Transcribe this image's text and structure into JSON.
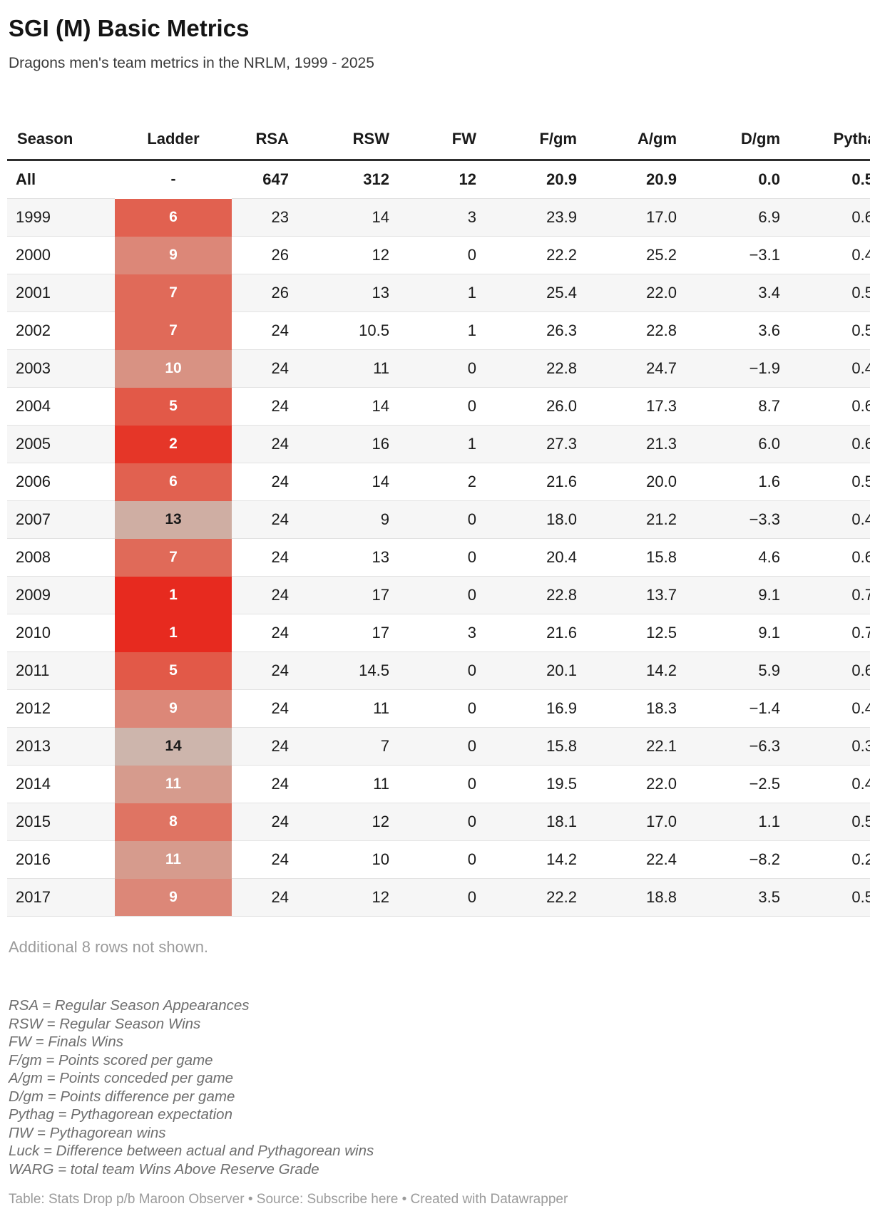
{
  "header": {
    "title": "SGI (M) Basic Metrics",
    "subtitle": "Dragons men's team metrics in the NRLM, 1999 - 2025"
  },
  "table": {
    "columns": [
      "Season",
      "Ladder",
      "RSA",
      "RSW",
      "FW",
      "F/gm",
      "A/gm",
      "D/gm",
      "Pythag"
    ],
    "ladder_colors": {
      "1": "#e72a1f",
      "2": "#e53628",
      "5": "#e25948",
      "6": "#e16150",
      "7": "#e06a59",
      "8": "#df7463",
      "9": "#dc8778",
      "10": "#d89283",
      "11": "#d69b8d",
      "13": "#cfaea3",
      "14": "#cdb5ac"
    },
    "ladder_dark_text_ranks": [
      13,
      14
    ],
    "summary_row": {
      "season": "All",
      "ladder": "-",
      "rsa": "647",
      "rsw": "312",
      "fw": "12",
      "fgm": "20.9",
      "agm": "20.9",
      "dgm": "0.0",
      "pyth": "0.5"
    },
    "rows": [
      {
        "season": "1999",
        "ladder": 6,
        "rsa": "23",
        "rsw": "14",
        "fw": "3",
        "fgm": "23.9",
        "agm": "17.0",
        "dgm": "6.9",
        "pyth": "0.6"
      },
      {
        "season": "2000",
        "ladder": 9,
        "rsa": "26",
        "rsw": "12",
        "fw": "0",
        "fgm": "22.2",
        "agm": "25.2",
        "dgm": "−3.1",
        "pyth": "0.4"
      },
      {
        "season": "2001",
        "ladder": 7,
        "rsa": "26",
        "rsw": "13",
        "fw": "1",
        "fgm": "25.4",
        "agm": "22.0",
        "dgm": "3.4",
        "pyth": "0.5"
      },
      {
        "season": "2002",
        "ladder": 7,
        "rsa": "24",
        "rsw": "10.5",
        "fw": "1",
        "fgm": "26.3",
        "agm": "22.8",
        "dgm": "3.6",
        "pyth": "0.5"
      },
      {
        "season": "2003",
        "ladder": 10,
        "rsa": "24",
        "rsw": "11",
        "fw": "0",
        "fgm": "22.8",
        "agm": "24.7",
        "dgm": "−1.9",
        "pyth": "0.4"
      },
      {
        "season": "2004",
        "ladder": 5,
        "rsa": "24",
        "rsw": "14",
        "fw": "0",
        "fgm": "26.0",
        "agm": "17.3",
        "dgm": "8.7",
        "pyth": "0.6"
      },
      {
        "season": "2005",
        "ladder": 2,
        "rsa": "24",
        "rsw": "16",
        "fw": "1",
        "fgm": "27.3",
        "agm": "21.3",
        "dgm": "6.0",
        "pyth": "0.6"
      },
      {
        "season": "2006",
        "ladder": 6,
        "rsa": "24",
        "rsw": "14",
        "fw": "2",
        "fgm": "21.6",
        "agm": "20.0",
        "dgm": "1.6",
        "pyth": "0.5"
      },
      {
        "season": "2007",
        "ladder": 13,
        "rsa": "24",
        "rsw": "9",
        "fw": "0",
        "fgm": "18.0",
        "agm": "21.2",
        "dgm": "−3.3",
        "pyth": "0.4"
      },
      {
        "season": "2008",
        "ladder": 7,
        "rsa": "24",
        "rsw": "13",
        "fw": "0",
        "fgm": "20.4",
        "agm": "15.8",
        "dgm": "4.6",
        "pyth": "0.6"
      },
      {
        "season": "2009",
        "ladder": 1,
        "rsa": "24",
        "rsw": "17",
        "fw": "0",
        "fgm": "22.8",
        "agm": "13.7",
        "dgm": "9.1",
        "pyth": "0.7"
      },
      {
        "season": "2010",
        "ladder": 1,
        "rsa": "24",
        "rsw": "17",
        "fw": "3",
        "fgm": "21.6",
        "agm": "12.5",
        "dgm": "9.1",
        "pyth": "0.7"
      },
      {
        "season": "2011",
        "ladder": 5,
        "rsa": "24",
        "rsw": "14.5",
        "fw": "0",
        "fgm": "20.1",
        "agm": "14.2",
        "dgm": "5.9",
        "pyth": "0.6"
      },
      {
        "season": "2012",
        "ladder": 9,
        "rsa": "24",
        "rsw": "11",
        "fw": "0",
        "fgm": "16.9",
        "agm": "18.3",
        "dgm": "−1.4",
        "pyth": "0.4"
      },
      {
        "season": "2013",
        "ladder": 14,
        "rsa": "24",
        "rsw": "7",
        "fw": "0",
        "fgm": "15.8",
        "agm": "22.1",
        "dgm": "−6.3",
        "pyth": "0.3"
      },
      {
        "season": "2014",
        "ladder": 11,
        "rsa": "24",
        "rsw": "11",
        "fw": "0",
        "fgm": "19.5",
        "agm": "22.0",
        "dgm": "−2.5",
        "pyth": "0.4"
      },
      {
        "season": "2015",
        "ladder": 8,
        "rsa": "24",
        "rsw": "12",
        "fw": "0",
        "fgm": "18.1",
        "agm": "17.0",
        "dgm": "1.1",
        "pyth": "0.5"
      },
      {
        "season": "2016",
        "ladder": 11,
        "rsa": "24",
        "rsw": "10",
        "fw": "0",
        "fgm": "14.2",
        "agm": "22.4",
        "dgm": "−8.2",
        "pyth": "0.2"
      },
      {
        "season": "2017",
        "ladder": 9,
        "rsa": "24",
        "rsw": "12",
        "fw": "0",
        "fgm": "22.2",
        "agm": "18.8",
        "dgm": "3.5",
        "pyth": "0.5"
      }
    ]
  },
  "notes": {
    "additional": "Additional 8 rows not shown.",
    "footnotes": [
      "RSA = Regular Season Appearances",
      "RSW = Regular Season Wins",
      "FW = Finals Wins",
      "F/gm = Points scored per game",
      "A/gm = Points conceded per game",
      "D/gm = Points difference per game",
      "Pythag = Pythagorean expectation",
      "ΠW = Pythagorean wins",
      "Luck = Difference between actual and Pythagorean wins",
      "WARG = total team Wins Above Reserve Grade"
    ]
  },
  "footer": {
    "table_credit": "Table: Stats Drop p/b Maroon Observer",
    "separator1": " • ",
    "source_label": "Source: ",
    "source_link": "Subscribe here",
    "separator2": " • ",
    "created_label": "Created with ",
    "tool_link": "Datawrapper"
  },
  "chart_data": {
    "type": "table",
    "title": "SGI (M) Basic Metrics",
    "subtitle": "Dragons men's team metrics in the NRLM, 1999 - 2025",
    "columns": [
      "Season",
      "Ladder",
      "RSA",
      "RSW",
      "FW",
      "F/gm",
      "A/gm",
      "D/gm",
      "Pythag"
    ],
    "heatmap_column": "Ladder",
    "rows": [
      [
        "All",
        null,
        647,
        312,
        12,
        20.9,
        20.9,
        0.0,
        "0.5"
      ],
      [
        "1999",
        6,
        23,
        14,
        3,
        23.9,
        17.0,
        6.9,
        "0.6"
      ],
      [
        "2000",
        9,
        26,
        12,
        0,
        22.2,
        25.2,
        -3.1,
        "0.4"
      ],
      [
        "2001",
        7,
        26,
        13,
        1,
        25.4,
        22.0,
        3.4,
        "0.5"
      ],
      [
        "2002",
        7,
        24,
        10.5,
        1,
        26.3,
        22.8,
        3.6,
        "0.5"
      ],
      [
        "2003",
        10,
        24,
        11,
        0,
        22.8,
        24.7,
        -1.9,
        "0.4"
      ],
      [
        "2004",
        5,
        24,
        14,
        0,
        26.0,
        17.3,
        8.7,
        "0.6"
      ],
      [
        "2005",
        2,
        24,
        16,
        1,
        27.3,
        21.3,
        6.0,
        "0.6"
      ],
      [
        "2006",
        6,
        24,
        14,
        2,
        21.6,
        20.0,
        1.6,
        "0.5"
      ],
      [
        "2007",
        13,
        24,
        9,
        0,
        18.0,
        21.2,
        -3.3,
        "0.4"
      ],
      [
        "2008",
        7,
        24,
        13,
        0,
        20.4,
        15.8,
        4.6,
        "0.6"
      ],
      [
        "2009",
        1,
        24,
        17,
        0,
        22.8,
        13.7,
        9.1,
        "0.7"
      ],
      [
        "2010",
        1,
        24,
        17,
        3,
        21.6,
        12.5,
        9.1,
        "0.7"
      ],
      [
        "2011",
        5,
        24,
        14.5,
        0,
        20.1,
        14.2,
        5.9,
        "0.6"
      ],
      [
        "2012",
        9,
        24,
        11,
        0,
        16.9,
        18.3,
        -1.4,
        "0.4"
      ],
      [
        "2013",
        14,
        24,
        7,
        0,
        15.8,
        22.1,
        -6.3,
        "0.3"
      ],
      [
        "2014",
        11,
        24,
        11,
        0,
        19.5,
        22.0,
        -2.5,
        "0.4"
      ],
      [
        "2015",
        8,
        24,
        12,
        0,
        18.1,
        17.0,
        1.1,
        "0.5"
      ],
      [
        "2016",
        11,
        24,
        10,
        0,
        14.2,
        22.4,
        -8.2,
        "0.2"
      ],
      [
        "2017",
        9,
        24,
        12,
        0,
        22.2,
        18.8,
        3.5,
        "0.5"
      ]
    ]
  }
}
